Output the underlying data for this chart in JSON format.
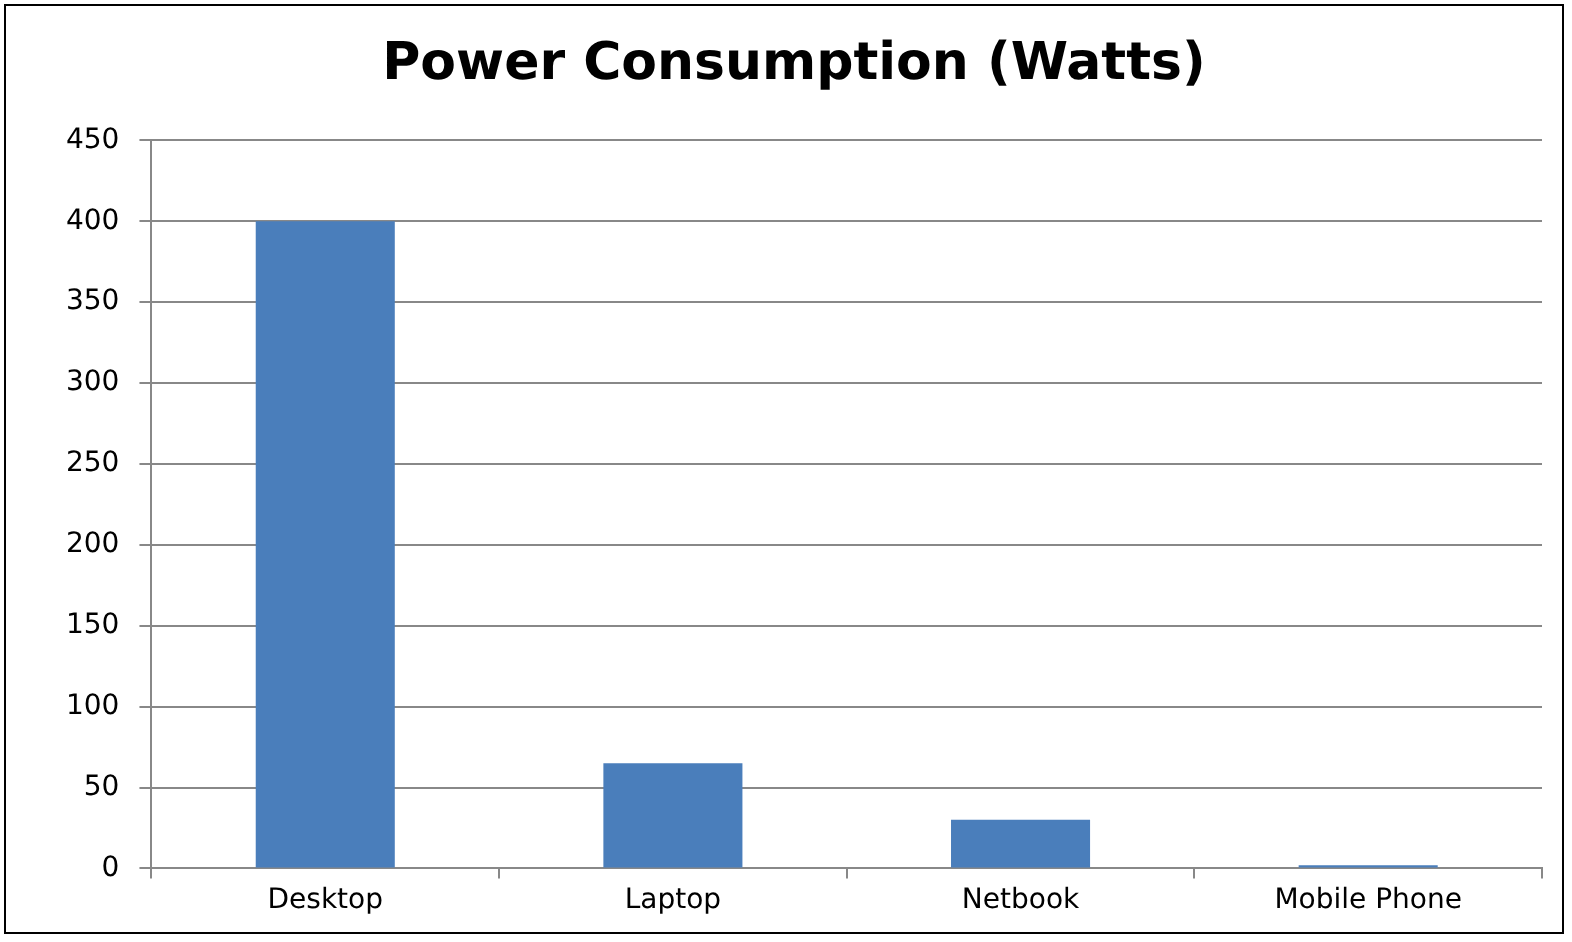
{
  "chart_data": {
    "type": "bar",
    "title": "Power Consumption (Watts)",
    "categories": [
      "Desktop",
      "Laptop",
      "Netbook",
      "Mobile Phone"
    ],
    "values": [
      400,
      65,
      30,
      2
    ],
    "color": "#4a7ebb",
    "ylim": [
      0,
      450
    ],
    "yticks": [
      0,
      50,
      100,
      150,
      200,
      250,
      300,
      350,
      400,
      450
    ],
    "grid": "y"
  }
}
